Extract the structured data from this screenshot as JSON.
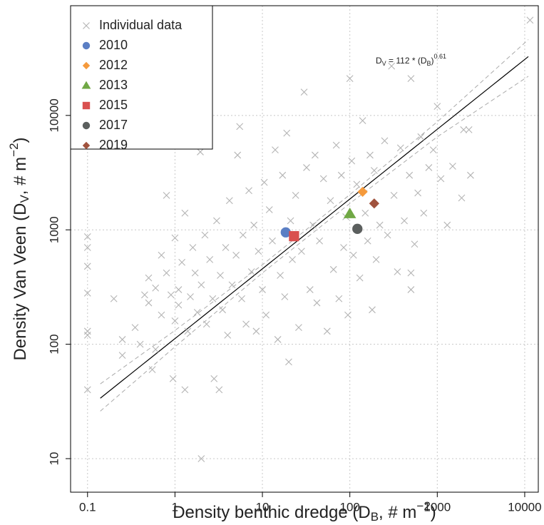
{
  "chart_data": {
    "type": "scatter",
    "xlabel": [
      "Density benthic dredge (D",
      "B",
      ", # m",
      "−2",
      ")"
    ],
    "ylabel": [
      "Density Van Veen (D",
      "V",
      ", # m",
      "−2",
      ")"
    ],
    "log_x": true,
    "log_y": true,
    "grid": true,
    "legend": "top-left",
    "xlim": [
      0.064,
      14300
    ],
    "ylim": [
      5.09,
      91000
    ],
    "xticks": [
      0.1,
      1,
      10,
      100,
      1000,
      10000
    ],
    "yticks": [
      10,
      100,
      1000,
      10000
    ],
    "equation": [
      "D",
      "V",
      " = ",
      " * (D",
      "B",
      ")"
    ],
    "fit": {
      "coefficient": 112,
      "exponent": 0.61,
      "xrange": [
        0.14,
        11000
      ],
      "color": "#000000"
    },
    "bands": [
      {
        "x": [
          0.14,
          1,
          10,
          100,
          1000,
          11000
        ],
        "values": [
          26,
          95,
          420,
          1700,
          6500,
          22000
        ],
        "color": "#aaaaaa"
      },
      {
        "x": [
          0.14,
          1,
          10,
          100,
          1000,
          11000
        ],
        "values": [
          45,
          132,
          495,
          2030,
          8800,
          46000
        ],
        "color": "#aaaaaa"
      }
    ],
    "series": [
      {
        "name": "Individual data",
        "marker": "x",
        "color": "#b4b4b4",
        "x": [
          0.1,
          0.1,
          0.1,
          0.1,
          0.1,
          0.1,
          0.1,
          0.2,
          0.25,
          0.25,
          0.35,
          0.4,
          0.45,
          0.5,
          0.5,
          0.55,
          0.6,
          0.6,
          0.7,
          0.7,
          0.8,
          0.8,
          0.9,
          0.95,
          1,
          1,
          1.1,
          1.1,
          1.2,
          1.3,
          1.3,
          1.4,
          1.5,
          1.6,
          1.7,
          1.8,
          1.95,
          1.95,
          2,
          2,
          2.2,
          2.3,
          2.5,
          2.7,
          2.8,
          3,
          3.2,
          3.3,
          3.5,
          3.8,
          4,
          4.2,
          4.5,
          5,
          5.2,
          5.5,
          5.8,
          6,
          6.5,
          7,
          7.5,
          8,
          8.5,
          9,
          10,
          10.5,
          11,
          12,
          13,
          14,
          15,
          16,
          17,
          18,
          19,
          20,
          21,
          22,
          24,
          26,
          28,
          30,
          32,
          35,
          38,
          40,
          42,
          45,
          50,
          55,
          60,
          65,
          70,
          75,
          80,
          85,
          90,
          95,
          100,
          105,
          110,
          120,
          130,
          140,
          150,
          160,
          170,
          180,
          190,
          200,
          220,
          250,
          270,
          300,
          320,
          350,
          380,
          420,
          480,
          500,
          500,
          500,
          550,
          600,
          650,
          700,
          800,
          900,
          1000,
          1100,
          1300,
          1500,
          1900,
          2000,
          2300,
          2400,
          11500
        ],
        "values": [
          130,
          120,
          40,
          280,
          480,
          700,
          870,
          250,
          80,
          110,
          140,
          100,
          270,
          380,
          230,
          60,
          90,
          310,
          180,
          600,
          2000,
          420,
          270,
          50,
          850,
          160,
          300,
          220,
          520,
          40,
          1400,
          130,
          260,
          700,
          420,
          190,
          4800,
          5800,
          10,
          330,
          900,
          150,
          550,
          250,
          50,
          1200,
          40,
          400,
          200,
          700,
          120,
          1800,
          330,
          600,
          4500,
          8000,
          250,
          900,
          150,
          2200,
          430,
          1100,
          130,
          650,
          300,
          2600,
          180,
          1500,
          800,
          5000,
          110,
          400,
          3000,
          260,
          7000,
          70,
          1200,
          550,
          2000,
          140,
          650,
          16000,
          3500,
          300,
          1100,
          4500,
          230,
          800,
          2800,
          130,
          1800,
          450,
          5500,
          250,
          3000,
          700,
          1300,
          180,
          21000,
          4000,
          600,
          2500,
          380,
          9000,
          1400,
          800,
          4500,
          200,
          3300,
          550,
          1100,
          6000,
          900,
          27000,
          2000,
          430,
          5200,
          1200,
          3000,
          21000,
          300,
          420,
          750,
          2100,
          6500,
          1400,
          3500,
          5000,
          12000,
          2800,
          1100,
          3600,
          1900,
          7500,
          7500,
          3000,
          68000
        ]
      },
      {
        "name": "2010",
        "marker": "circle",
        "color": "#5b7fc4",
        "x": [
          18.5
        ],
        "values": [
          950
        ]
      },
      {
        "name": "2012",
        "marker": "diamond",
        "color": "#f59a3c",
        "x": [
          140
        ],
        "values": [
          2150
        ]
      },
      {
        "name": "2013",
        "marker": "triangle",
        "color": "#70a845",
        "x": [
          100
        ],
        "values": [
          1380
        ]
      },
      {
        "name": "2015",
        "marker": "square",
        "color": "#d9504f",
        "x": [
          23
        ],
        "values": [
          880
        ]
      },
      {
        "name": "2017",
        "marker": "circle",
        "color": "#5b5f5e",
        "x": [
          122
        ],
        "values": [
          1020
        ]
      },
      {
        "name": "2019",
        "marker": "diamond",
        "color": "#a0523d",
        "x": [
          190
        ],
        "values": [
          1700
        ]
      }
    ]
  }
}
